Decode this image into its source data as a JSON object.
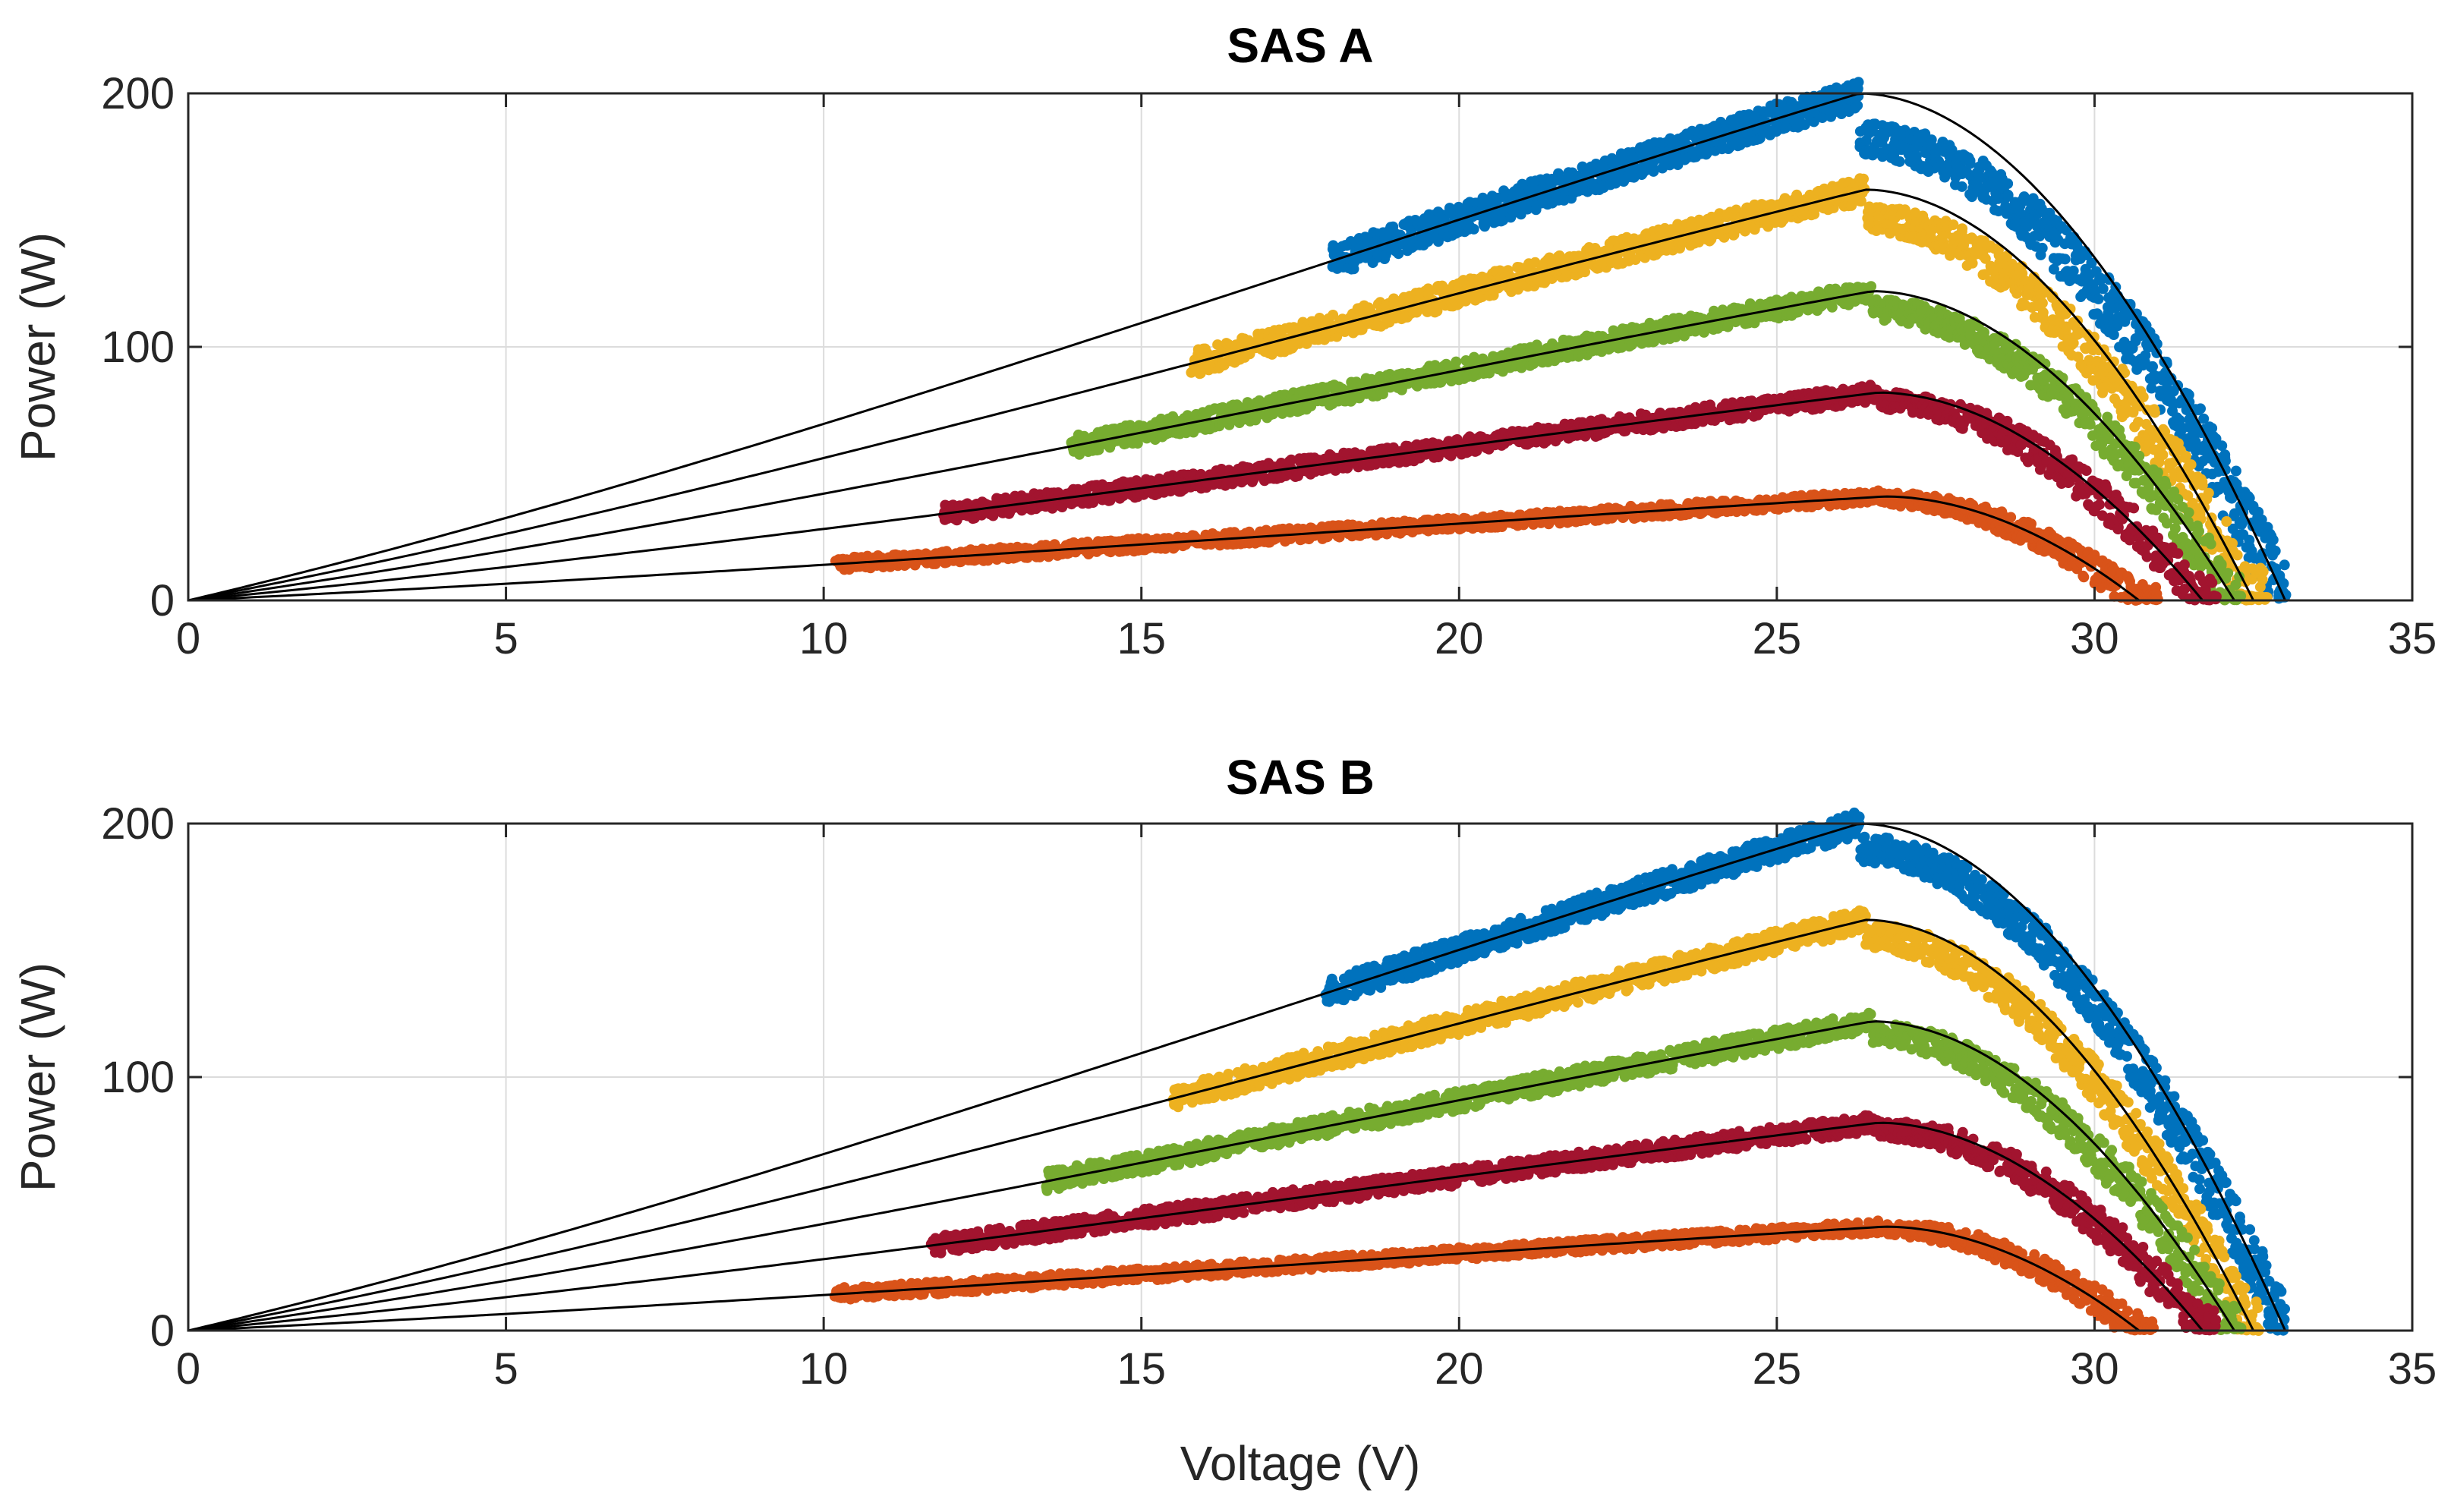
{
  "chart_data": [
    {
      "type": "scatter",
      "title": "SAS A",
      "xlabel": "",
      "ylabel": "Power (W)",
      "xlim": [
        0,
        35
      ],
      "ylim": [
        0,
        200
      ],
      "xticks": [
        0,
        5,
        10,
        15,
        20,
        25,
        30,
        35
      ],
      "yticks": [
        0,
        100,
        200
      ],
      "grid": true,
      "model_curves": [
        {
          "pmax": 200,
          "vmp": 26.3,
          "voc": 33.0
        },
        {
          "pmax": 162,
          "vmp": 26.4,
          "voc": 32.5
        },
        {
          "pmax": 122,
          "vmp": 26.5,
          "voc": 32.2
        },
        {
          "pmax": 82,
          "vmp": 26.6,
          "voc": 31.7
        },
        {
          "pmax": 41,
          "vmp": 26.7,
          "voc": 30.7
        }
      ],
      "series": [
        {
          "color": "#0072BD",
          "v_start": 18.0,
          "v_end": 33.0,
          "pmax": 200,
          "vmp": 26.3,
          "voc": 33.0,
          "spread": 6,
          "derate": 0.91
        },
        {
          "color": "#EDB120",
          "v_start": 15.8,
          "v_end": 32.7,
          "pmax": 162,
          "vmp": 26.4,
          "voc": 32.5,
          "spread": 5,
          "derate": 0.93
        },
        {
          "color": "#77AC30",
          "v_start": 13.9,
          "v_end": 32.3,
          "pmax": 122,
          "vmp": 26.5,
          "voc": 32.2,
          "spread": 4,
          "derate": 0.94
        },
        {
          "color": "#A2142F",
          "v_start": 11.9,
          "v_end": 31.9,
          "pmax": 82,
          "vmp": 26.6,
          "voc": 31.7,
          "spread": 3.5,
          "derate": 0.96
        },
        {
          "color": "#D95319",
          "v_start": 10.2,
          "v_end": 31.0,
          "pmax": 41,
          "vmp": 26.7,
          "voc": 30.7,
          "spread": 2.5,
          "derate": 0.97
        }
      ]
    },
    {
      "type": "scatter",
      "title": "SAS B",
      "xlabel": "Voltage (V)",
      "ylabel": "Power (W)",
      "xlim": [
        0,
        35
      ],
      "ylim": [
        0,
        200
      ],
      "xticks": [
        0,
        5,
        10,
        15,
        20,
        25,
        30,
        35
      ],
      "yticks": [
        0,
        100,
        200
      ],
      "grid": true,
      "model_curves": [
        {
          "pmax": 200,
          "vmp": 26.3,
          "voc": 33.0
        },
        {
          "pmax": 162,
          "vmp": 26.4,
          "voc": 32.5
        },
        {
          "pmax": 122,
          "vmp": 26.5,
          "voc": 32.2
        },
        {
          "pmax": 82,
          "vmp": 26.6,
          "voc": 31.7
        },
        {
          "pmax": 41,
          "vmp": 26.7,
          "voc": 30.7
        }
      ],
      "series": [
        {
          "color": "#0072BD",
          "v_start": 17.9,
          "v_end": 33.0,
          "pmax": 200,
          "vmp": 26.3,
          "voc": 33.0,
          "spread": 5,
          "derate": 0.95
        },
        {
          "color": "#EDB120",
          "v_start": 15.5,
          "v_end": 32.6,
          "pmax": 162,
          "vmp": 26.4,
          "voc": 32.5,
          "spread": 4.5,
          "derate": 0.96
        },
        {
          "color": "#77AC30",
          "v_start": 13.5,
          "v_end": 32.3,
          "pmax": 122,
          "vmp": 26.5,
          "voc": 32.2,
          "spread": 4,
          "derate": 0.96
        },
        {
          "color": "#A2142F",
          "v_start": 11.7,
          "v_end": 31.9,
          "pmax": 82,
          "vmp": 26.6,
          "voc": 31.7,
          "spread": 3.5,
          "derate": 0.97
        },
        {
          "color": "#D95319",
          "v_start": 10.2,
          "v_end": 30.9,
          "pmax": 41,
          "vmp": 26.7,
          "voc": 30.7,
          "spread": 2.5,
          "derate": 0.98
        }
      ]
    }
  ]
}
